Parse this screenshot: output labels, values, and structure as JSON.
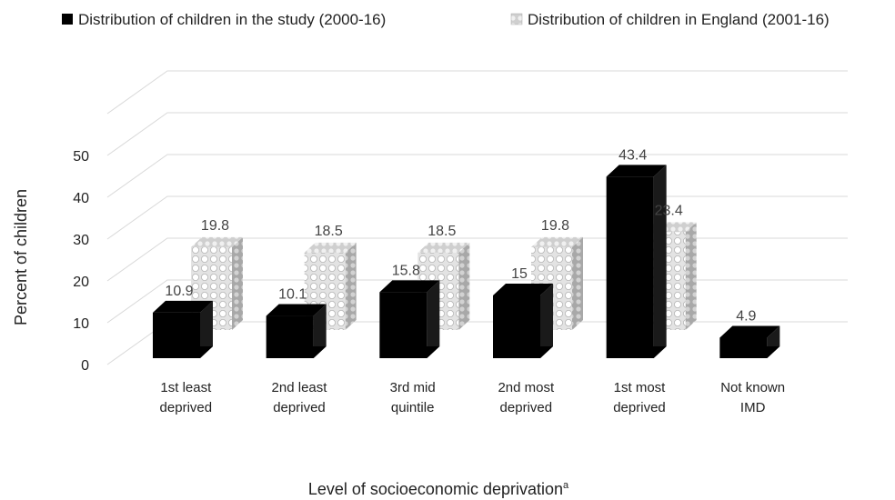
{
  "chart_data": {
    "type": "bar",
    "title": "",
    "xlabel": "Level of socioeconomic deprivation",
    "xlabel_superscript": "a",
    "ylabel": "Percent of children",
    "ylim": [
      0,
      50
    ],
    "yticks": [
      "0",
      "10",
      "20",
      "30",
      "40",
      "50"
    ],
    "categories": [
      [
        "1st least",
        "deprived"
      ],
      [
        "2nd least",
        "deprived"
      ],
      [
        "3rd mid",
        "quintile"
      ],
      [
        "2nd most",
        "deprived"
      ],
      [
        "1st most",
        "deprived"
      ],
      [
        "Not known",
        "IMD"
      ]
    ],
    "series": [
      {
        "name": "Distribution of children in the study (2000-16)",
        "values": [
          10.9,
          10.1,
          15.8,
          15,
          43.4,
          4.9
        ],
        "labels": [
          "10.9",
          "10.1",
          "15.8",
          "15",
          "43.4",
          "4.9"
        ],
        "color": "#000000"
      },
      {
        "name": "Distribution of children in England (2001-16)",
        "values": [
          19.8,
          18.5,
          18.5,
          19.8,
          23.4,
          null
        ],
        "labels": [
          "19.8",
          "18.5",
          "18.5",
          "19.8",
          "23.4",
          ""
        ],
        "color": "#c8c8c8"
      }
    ],
    "grid": true,
    "legend_position": "top",
    "style": "3d-columns"
  }
}
